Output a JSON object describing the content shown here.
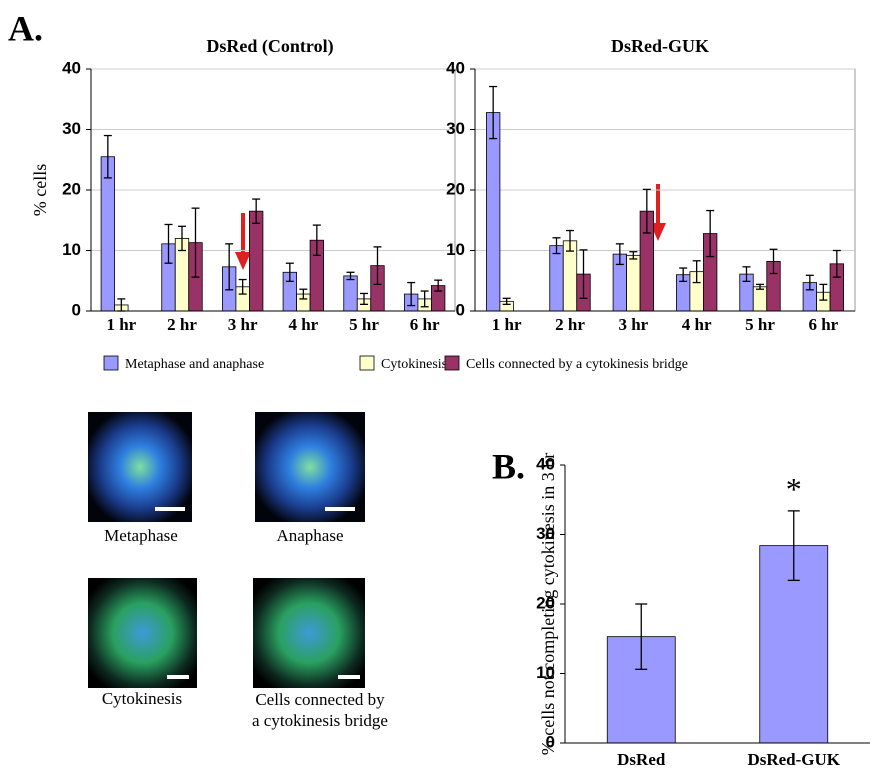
{
  "chart_data": [
    {
      "type": "bar",
      "title": "DsRed (Control)",
      "y_label": "% cells",
      "categories": [
        "1 hr",
        "2 hr",
        "3 hr",
        "4 hr",
        "5 hr",
        "6 hr"
      ],
      "series": [
        {
          "name": "Metaphase and anaphase",
          "color": "#9999ff",
          "values": [
            25.5,
            11.1,
            7.3,
            6.4,
            5.8,
            2.8
          ],
          "errors": [
            3.5,
            3.2,
            3.8,
            1.5,
            0.6,
            1.9
          ]
        },
        {
          "name": "Cytokinesis",
          "color": "#ffffcc",
          "values": [
            1,
            12,
            4,
            2.8,
            2,
            2
          ],
          "errors": [
            1,
            2,
            1.2,
            0.8,
            0.9,
            1.3
          ]
        },
        {
          "name": "Cells connected by a cytokinesis bridge",
          "color": "#993366",
          "values": [
            null,
            11.3,
            16.5,
            11.7,
            7.5,
            4.2
          ],
          "errors": [
            null,
            5.7,
            2,
            2.5,
            3.1,
            0.9
          ]
        }
      ],
      "ylim": [
        0,
        40
      ],
      "yticks": [
        0,
        10,
        20,
        30,
        40
      ],
      "grid": true
    },
    {
      "type": "bar",
      "title": "DsRed-GUK",
      "categories": [
        "1 hr",
        "2 hr",
        "3 hr",
        "4 hr",
        "5 hr",
        "6 hr"
      ],
      "series": [
        {
          "color": "#9999ff",
          "values": [
            32.8,
            10.8,
            9.4,
            6,
            6.1,
            4.7
          ],
          "errors": [
            4.3,
            1.3,
            1.7,
            1.1,
            1.2,
            1.2
          ]
        },
        {
          "color": "#ffffcc",
          "values": [
            1.6,
            11.6,
            9.2,
            6.5,
            4,
            3.1
          ],
          "errors": [
            0.5,
            1.7,
            0.6,
            1.8,
            0.4,
            1.3
          ]
        },
        {
          "color": "#993366",
          "values": [
            null,
            6.1,
            16.5,
            12.8,
            8.2,
            7.8
          ],
          "errors": [
            null,
            4,
            3.6,
            3.8,
            2,
            2.2
          ]
        }
      ],
      "ylim": [
        0,
        40
      ],
      "yticks": [
        0,
        10,
        20,
        30,
        40
      ],
      "grid": true
    },
    {
      "type": "bar",
      "y_label": "% cells not completing cytokinesis in 3 hr",
      "categories": [
        "DsRed",
        "DsRed-GUK"
      ],
      "color": "#9999ff",
      "values": [
        15.3,
        28.4
      ],
      "errors": [
        4.7,
        5
      ],
      "annotations": [
        "",
        "*"
      ],
      "ylim": [
        0,
        40
      ],
      "yticks": [
        0,
        10,
        20,
        30,
        40
      ],
      "grid": false
    }
  ],
  "figure": {
    "panel_labels": [
      "A.",
      "B."
    ],
    "image_captions": [
      "Metaphase",
      "Anaphase",
      "Cytokinesis",
      [
        "Cells connected by",
        "a cytokinesis bridge"
      ]
    ]
  }
}
